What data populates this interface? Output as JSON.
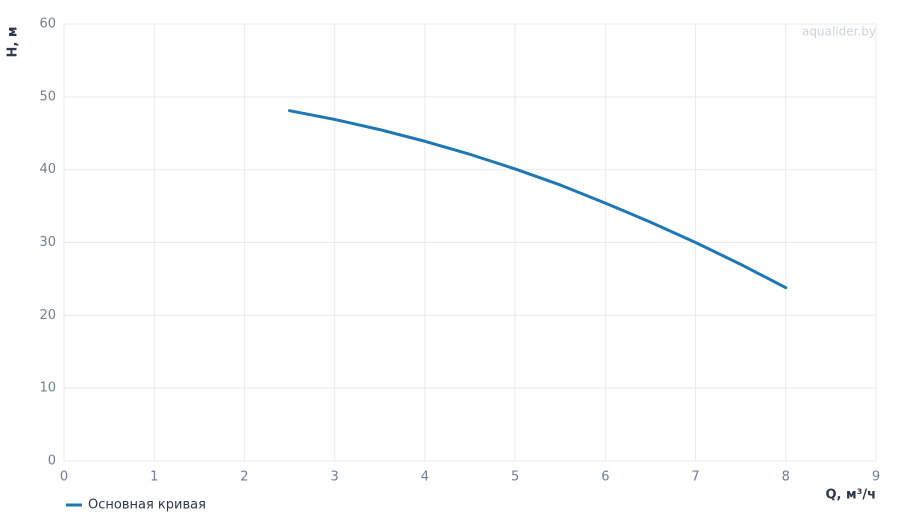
{
  "chart_data": {
    "type": "line",
    "watermark": "aqualider.by",
    "x_label": "Q, м³/ч",
    "y_label": "H, м",
    "x": [
      2.5,
      3,
      3.5,
      4,
      4.5,
      5,
      5.5,
      6,
      6.5,
      7,
      7.5,
      8
    ],
    "series": [
      {
        "name": "Основная кривая",
        "color": "#1f77b4",
        "values": [
          48.1,
          46.9,
          45.5,
          43.9,
          42.1,
          40.1,
          37.9,
          35.4,
          32.8,
          30.0,
          27.0,
          23.8
        ]
      }
    ],
    "xlim": [
      0,
      9
    ],
    "xticks": [
      0,
      1,
      2,
      3,
      4,
      5,
      6,
      7,
      8,
      9
    ],
    "ylim": [
      0,
      60
    ],
    "yticks": [
      0,
      10,
      20,
      30,
      40,
      50,
      60
    ],
    "grid": true,
    "legend": "bottom-left"
  }
}
